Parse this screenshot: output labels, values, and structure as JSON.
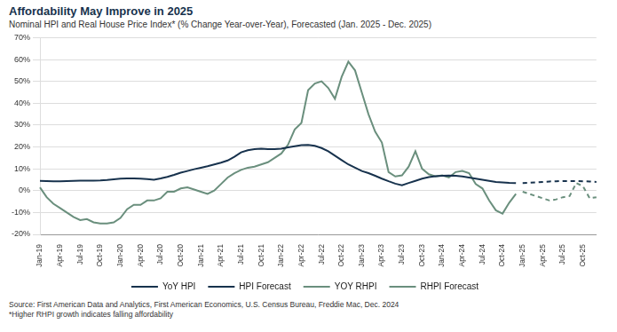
{
  "chart_data": {
    "type": "line",
    "title": "Affordability May Improve in 2025",
    "subtitle": "Nominal HPI and Real House Price Index* (% Change Year-over-Year), Forecasted (Jan. 2025 - Dec. 2025)",
    "source": "Source: First American Data and Analytics, First American Economics, U.S. Census Bureau, Freddie Mac, Dec. 2024",
    "note": "*Higher RHPI growth indicates falling affordability",
    "categories": [
      "Jan-19",
      null,
      null,
      "Apr-19",
      null,
      null,
      "Jul-19",
      null,
      null,
      "Oct-19",
      null,
      null,
      "Jan-20",
      null,
      null,
      "Apr-20",
      null,
      null,
      "Jul-20",
      null,
      null,
      "Oct-20",
      null,
      null,
      "Jan-21",
      null,
      null,
      "Apr-21",
      null,
      null,
      "Jul-21",
      null,
      null,
      "Oct-21",
      null,
      null,
      "Jan-22",
      null,
      null,
      "Apr-22",
      null,
      null,
      "Jul-22",
      null,
      null,
      "Oct-22",
      null,
      null,
      "Jan-23",
      null,
      null,
      "Apr-23",
      null,
      null,
      "Jul-23",
      null,
      null,
      "Oct-23",
      null,
      null,
      "Jan-24",
      null,
      null,
      "Apr-24",
      null,
      null,
      "Jul-24",
      null,
      null,
      "Oct-24",
      null,
      null,
      "Jan-25",
      null,
      null,
      "Apr-25",
      null,
      null,
      "Jul-25",
      null,
      null,
      "Oct-25",
      null,
      null
    ],
    "series": [
      {
        "name": "YoY HPI",
        "color": "#17324d",
        "line_style": "solid",
        "values": [
          4.5,
          4.4,
          4.3,
          4.3,
          4.4,
          4.5,
          4.6,
          4.6,
          4.6,
          4.7,
          4.9,
          5.2,
          5.5,
          5.6,
          5.6,
          5.5,
          5.3,
          5.0,
          5.6,
          6.3,
          7.2,
          8.2,
          9.0,
          9.8,
          10.5,
          11.2,
          12.0,
          12.8,
          13.8,
          15.5,
          17.5,
          18.5,
          19.0,
          19.2,
          19.0,
          19.0,
          19.2,
          19.8,
          20.3,
          20.8,
          20.9,
          20.5,
          19.5,
          18.0,
          16.0,
          14.0,
          12.0,
          10.5,
          9.0,
          8.0,
          6.8,
          5.5,
          4.3,
          3.2,
          2.5,
          3.5,
          4.5,
          5.5,
          6.2,
          6.6,
          6.8,
          6.9,
          6.8,
          6.5,
          6.0,
          5.5,
          5.0,
          4.5,
          4.0,
          3.8,
          3.6,
          3.5,
          null,
          null,
          null,
          null,
          null,
          null,
          null,
          null,
          null,
          null,
          null,
          null
        ]
      },
      {
        "name": "HPI Forecast",
        "color": "#17324d",
        "line_style": "dashed",
        "values": [
          null,
          null,
          null,
          null,
          null,
          null,
          null,
          null,
          null,
          null,
          null,
          null,
          null,
          null,
          null,
          null,
          null,
          null,
          null,
          null,
          null,
          null,
          null,
          null,
          null,
          null,
          null,
          null,
          null,
          null,
          null,
          null,
          null,
          null,
          null,
          null,
          null,
          null,
          null,
          null,
          null,
          null,
          null,
          null,
          null,
          null,
          null,
          null,
          null,
          null,
          null,
          null,
          null,
          null,
          null,
          null,
          null,
          null,
          null,
          null,
          null,
          null,
          null,
          null,
          null,
          null,
          null,
          null,
          null,
          null,
          null,
          null,
          3.5,
          3.6,
          3.8,
          4.0,
          4.2,
          4.3,
          4.4,
          4.4,
          4.4,
          4.3,
          4.2,
          4.0
        ]
      },
      {
        "name": "YOY RHPI",
        "color": "#6a8f7d",
        "line_style": "solid",
        "values": [
          1.5,
          -3,
          -6,
          -8,
          -10,
          -12,
          -13.5,
          -13,
          -14.5,
          -15,
          -15,
          -14.5,
          -12.5,
          -8.5,
          -6.5,
          -6.5,
          -4.5,
          -4.5,
          -3.5,
          -0.5,
          -0.5,
          1,
          1.5,
          0.5,
          -0.5,
          -1.5,
          0,
          3,
          6,
          8,
          9.5,
          10.5,
          11,
          12,
          13,
          15,
          17,
          21,
          28,
          31,
          46,
          49,
          50,
          47,
          42,
          52,
          59,
          55,
          45,
          35,
          27,
          22,
          8.5,
          6.5,
          7,
          11,
          18,
          10,
          7.5,
          6.5,
          7,
          6,
          8.5,
          9,
          8,
          3,
          1,
          -4.5,
          -9,
          -10.5,
          -5.5,
          -1.5,
          null,
          null,
          null,
          null,
          null,
          null,
          null,
          null,
          null,
          null,
          null,
          null
        ]
      },
      {
        "name": "RHPI Forecast",
        "color": "#6a8f7d",
        "line_style": "dashed",
        "values": [
          null,
          null,
          null,
          null,
          null,
          null,
          null,
          null,
          null,
          null,
          null,
          null,
          null,
          null,
          null,
          null,
          null,
          null,
          null,
          null,
          null,
          null,
          null,
          null,
          null,
          null,
          null,
          null,
          null,
          null,
          null,
          null,
          null,
          null,
          null,
          null,
          null,
          null,
          null,
          null,
          null,
          null,
          null,
          null,
          null,
          null,
          null,
          null,
          null,
          null,
          null,
          null,
          null,
          null,
          null,
          null,
          null,
          null,
          null,
          null,
          null,
          null,
          null,
          null,
          null,
          null,
          null,
          null,
          null,
          null,
          null,
          null,
          -0.5,
          -1.5,
          -2.5,
          -3.5,
          -4.5,
          -4,
          -3,
          -2.5,
          3.5,
          2,
          -3.5,
          -3
        ]
      }
    ],
    "ylim": [
      -20,
      70
    ],
    "yticks": [
      {
        "value": -20,
        "label": "-20%"
      },
      {
        "value": -10,
        "label": "-10%"
      },
      {
        "value": 0,
        "label": "0%"
      },
      {
        "value": 10,
        "label": "10%"
      },
      {
        "value": 20,
        "label": "20%"
      },
      {
        "value": 30,
        "label": "30%"
      },
      {
        "value": 40,
        "label": "40%"
      },
      {
        "value": 50,
        "label": "50%"
      },
      {
        "value": 60,
        "label": "60%"
      },
      {
        "value": 70,
        "label": "70%"
      }
    ],
    "grid": true,
    "legend": "bottom"
  }
}
